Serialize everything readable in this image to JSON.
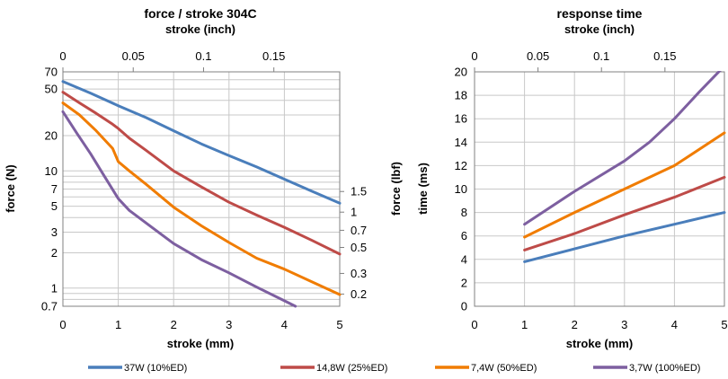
{
  "chart_data": [
    {
      "type": "line",
      "title": "force / stroke 304C",
      "xlabel": "stroke (mm)",
      "x2label": "stroke (inch)",
      "ylabel": "force (N)",
      "y2label": "force (lbf)",
      "xlim": [
        0,
        5
      ],
      "x2lim": [
        0,
        0.19685
      ],
      "ylim": [
        0.7,
        70
      ],
      "yscale": "log",
      "y2lim": [
        0.1574,
        15.74
      ],
      "y2scale": "log",
      "grid": true,
      "x_ticks": [
        "0",
        "1",
        "2",
        "3",
        "4",
        "5"
      ],
      "x2_ticks": [
        "0",
        "0.05",
        "0.1",
        "0.15"
      ],
      "y_ticks": [
        "0.7",
        "1",
        "2",
        "3",
        "5",
        "7",
        "10",
        "20",
        "50",
        "70"
      ],
      "y2_ticks": [
        "0.2",
        "0.3",
        "0.5",
        "0.7",
        "1",
        "1.5"
      ],
      "series": [
        {
          "name": "37W (10%ED)",
          "color": "#4a7ebb",
          "x": [
            0,
            0.5,
            1,
            1.5,
            2,
            2.5,
            3,
            3.5,
            4,
            4.5,
            5
          ],
          "y": [
            58,
            46,
            36,
            28.5,
            22,
            17,
            13.5,
            10.8,
            8.5,
            6.7,
            5.3
          ]
        },
        {
          "name": "14,8W (25%ED)",
          "color": "#be4b48",
          "x": [
            0,
            0.3,
            0.6,
            0.9,
            1.0,
            1.2,
            1.5,
            2,
            2.5,
            3,
            3.5,
            4,
            4.5,
            5
          ],
          "y": [
            47,
            38,
            31,
            25,
            23,
            19,
            15,
            10,
            7.3,
            5.4,
            4.2,
            3.3,
            2.55,
            1.95
          ]
        },
        {
          "name": "7,4W (50%ED)",
          "color": "#f07c00",
          "x": [
            0,
            0.3,
            0.6,
            0.9,
            1.0,
            1.2,
            1.5,
            2,
            2.5,
            3,
            3.5,
            4,
            4.5,
            5
          ],
          "y": [
            38,
            30,
            22,
            15.5,
            12,
            10,
            7.7,
            4.9,
            3.4,
            2.45,
            1.8,
            1.45,
            1.13,
            0.88
          ]
        },
        {
          "name": "3,7W (100%ED)",
          "color": "#7d5fa0",
          "x": [
            0,
            0.25,
            0.5,
            0.75,
            1.0,
            1.2,
            1.5,
            2,
            2.5,
            3,
            3.5,
            4,
            4.2
          ],
          "y": [
            32,
            21,
            14,
            9,
            5.8,
            4.6,
            3.6,
            2.4,
            1.75,
            1.35,
            1.02,
            0.78,
            0.7
          ]
        }
      ]
    },
    {
      "type": "line",
      "title": "response time",
      "xlabel": "stroke (mm)",
      "x2label": "stroke (inch)",
      "ylabel": "time (ms)",
      "xlim": [
        0,
        5
      ],
      "x2lim": [
        0,
        0.19685
      ],
      "ylim": [
        0,
        20
      ],
      "grid": true,
      "x_ticks": [
        "0",
        "1",
        "2",
        "3",
        "4",
        "5"
      ],
      "x2_ticks": [
        "0",
        "0.05",
        "0.1",
        "0.15"
      ],
      "y_ticks": [
        "0",
        "2",
        "4",
        "6",
        "8",
        "10",
        "12",
        "14",
        "16",
        "18",
        "20"
      ],
      "series": [
        {
          "name": "37W (10%ED)",
          "color": "#4a7ebb",
          "x": [
            1,
            2,
            3,
            4,
            5
          ],
          "y": [
            3.8,
            4.9,
            6.0,
            7.0,
            8.0
          ]
        },
        {
          "name": "14,8W (25%ED)",
          "color": "#be4b48",
          "x": [
            1,
            2,
            3,
            4,
            5
          ],
          "y": [
            4.8,
            6.2,
            7.8,
            9.3,
            11.0
          ]
        },
        {
          "name": "7,4W (50%ED)",
          "color": "#f07c00",
          "x": [
            1,
            2,
            3,
            4,
            5
          ],
          "y": [
            5.9,
            8.0,
            10.0,
            12.0,
            14.8
          ]
        },
        {
          "name": "3,7W (100%ED)",
          "color": "#7d5fa0",
          "x": [
            1,
            2,
            3,
            3.5,
            4,
            4.5,
            5
          ],
          "y": [
            7.0,
            9.8,
            12.4,
            14.0,
            16.0,
            18.3,
            20.5
          ]
        }
      ]
    }
  ],
  "legend": [
    {
      "label": "37W (10%ED)",
      "color": "#4a7ebb"
    },
    {
      "label": "14,8W (25%ED)",
      "color": "#be4b48"
    },
    {
      "label": "7,4W (50%ED)",
      "color": "#f07c00"
    },
    {
      "label": "3,7W (100%ED)",
      "color": "#7d5fa0"
    }
  ]
}
